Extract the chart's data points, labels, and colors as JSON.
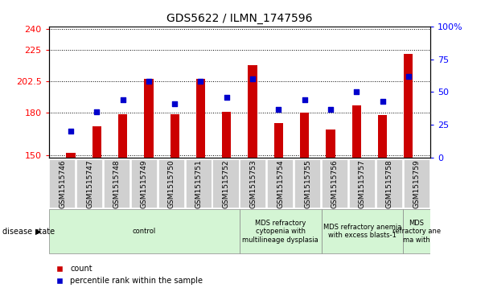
{
  "title": "GDS5622 / ILMN_1747596",
  "samples": [
    "GSM1515746",
    "GSM1515747",
    "GSM1515748",
    "GSM1515749",
    "GSM1515750",
    "GSM1515751",
    "GSM1515752",
    "GSM1515753",
    "GSM1515754",
    "GSM1515755",
    "GSM1515756",
    "GSM1515757",
    "GSM1515758",
    "GSM1515759"
  ],
  "counts": [
    151.5,
    170.5,
    179.0,
    204.5,
    179.0,
    204.5,
    181.0,
    214.0,
    173.0,
    180.5,
    168.0,
    185.5,
    178.5,
    222.0
  ],
  "percentile_ranks": [
    20,
    35,
    44,
    58,
    41,
    58,
    46,
    60,
    37,
    44,
    37,
    50,
    43,
    62
  ],
  "ylim_left": [
    148,
    242
  ],
  "ylim_right": [
    0,
    100
  ],
  "yticks_left": [
    150,
    180,
    202.5,
    225,
    240
  ],
  "yticks_right": [
    0,
    25,
    50,
    75,
    100
  ],
  "bar_color": "#cc0000",
  "dot_color": "#0000cc",
  "bar_bottom": 148,
  "group_configs": [
    {
      "start": 0,
      "end": 7,
      "label": "control"
    },
    {
      "start": 7,
      "end": 10,
      "label": "MDS refractory\ncytopenia with\nmultilineage dysplasia"
    },
    {
      "start": 10,
      "end": 13,
      "label": "MDS refractory anemia\nwith excess blasts-1"
    },
    {
      "start": 13,
      "end": 14,
      "label": "MDS\nrefractory ane\nma with"
    }
  ],
  "group_bg": "#d4f5d4",
  "xtick_bg": "#d0d0d0",
  "legend_count_label": "count",
  "legend_pct_label": "percentile rank within the sample",
  "disease_state_label": "disease state",
  "plot_bg": "#ffffff",
  "grid_color": "#000000",
  "title_fontsize": 10,
  "ytick_fontsize": 8,
  "xtick_fontsize": 6.5,
  "legend_fontsize": 7,
  "disease_fontsize": 6
}
